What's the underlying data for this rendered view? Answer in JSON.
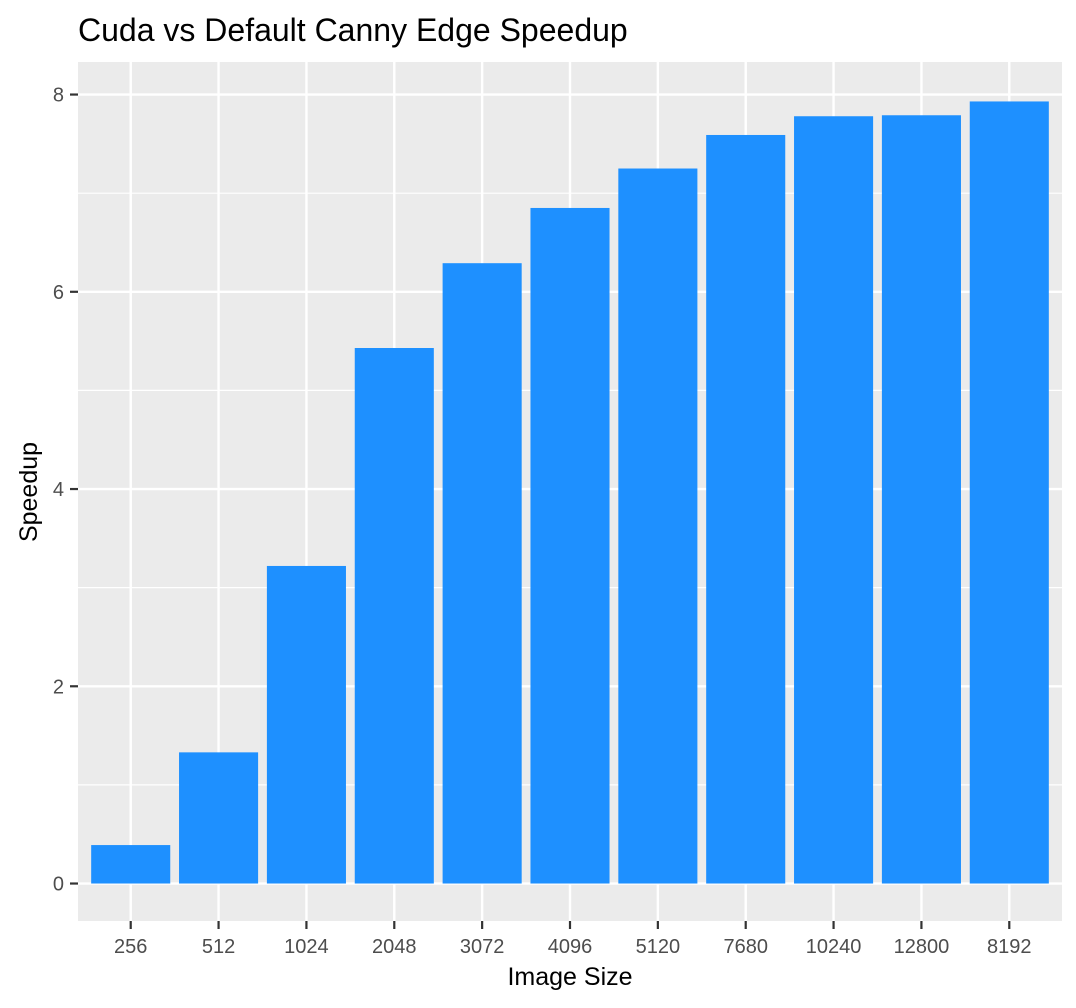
{
  "chart_data": {
    "type": "bar",
    "title": "Cuda vs Default Canny Edge Speedup",
    "xlabel": "Image Size",
    "ylabel": "Speedup",
    "categories": [
      "256",
      "512",
      "1024",
      "2048",
      "3072",
      "4096",
      "5120",
      "7680",
      "10240",
      "12800",
      "8192"
    ],
    "values": [
      0.39,
      1.33,
      3.22,
      5.43,
      6.29,
      6.85,
      7.25,
      7.59,
      7.78,
      7.79,
      7.93
    ],
    "ylim": [
      -0.38,
      8.33
    ],
    "yticks": [
      0,
      2,
      4,
      6,
      8
    ],
    "grid": true,
    "legend": "none",
    "colors": {
      "bar": "#1e90ff",
      "panel_background": "#ebebeb",
      "grid_line": "#ffffff",
      "tick_label": "#4d4d4d",
      "tick_mark": "#333333"
    }
  }
}
